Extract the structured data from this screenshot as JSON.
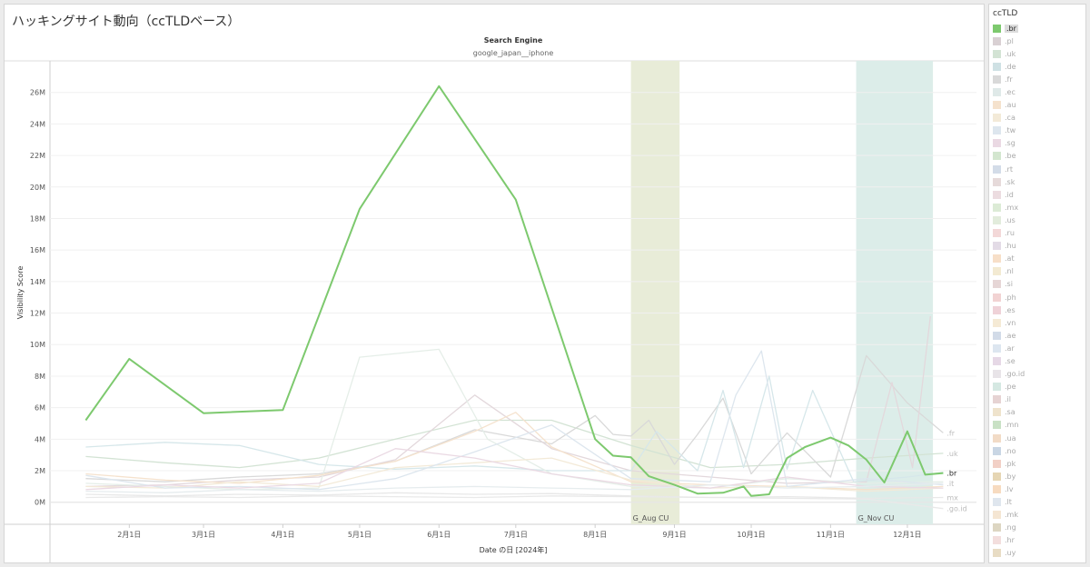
{
  "page": {
    "title": "ハッキングサイト動向（ccTLDベース）"
  },
  "chart_data": {
    "type": "line",
    "header_label": "Search Engine",
    "header_value": "google_japan__iphone",
    "xlabel": "Date の日 [2024年]",
    "ylabel": "Visibility Score",
    "xlim": [
      "2024-01-01",
      "2024-12-28"
    ],
    "ylim": [
      -1400000,
      28000000
    ],
    "x_ticks": [
      {
        "date": "2024-02-01",
        "label": "2月1日"
      },
      {
        "date": "2024-03-01",
        "label": "3月1日"
      },
      {
        "date": "2024-04-01",
        "label": "4月1日"
      },
      {
        "date": "2024-05-01",
        "label": "5月1日"
      },
      {
        "date": "2024-06-01",
        "label": "6月1日"
      },
      {
        "date": "2024-07-01",
        "label": "7月1日"
      },
      {
        "date": "2024-08-01",
        "label": "8月1日"
      },
      {
        "date": "2024-09-01",
        "label": "9月1日"
      },
      {
        "date": "2024-10-01",
        "label": "10月1日"
      },
      {
        "date": "2024-11-01",
        "label": "11月1日"
      },
      {
        "date": "2024-12-01",
        "label": "12月1日"
      }
    ],
    "y_ticks": [
      {
        "value": 0,
        "label": "0M"
      },
      {
        "value": 2000000,
        "label": "2M"
      },
      {
        "value": 4000000,
        "label": "4M"
      },
      {
        "value": 6000000,
        "label": "6M"
      },
      {
        "value": 8000000,
        "label": "8M"
      },
      {
        "value": 10000000,
        "label": "10M"
      },
      {
        "value": 12000000,
        "label": "12M"
      },
      {
        "value": 14000000,
        "label": "14M"
      },
      {
        "value": 16000000,
        "label": "16M"
      },
      {
        "value": 18000000,
        "label": "18M"
      },
      {
        "value": 20000000,
        "label": "20M"
      },
      {
        "value": 22000000,
        "label": "22M"
      },
      {
        "value": 24000000,
        "label": "24M"
      },
      {
        "value": 26000000,
        "label": "26M"
      }
    ],
    "grid": true,
    "bands": [
      {
        "label": "G_Aug CU",
        "start": "2024-08-15",
        "end": "2024-09-03",
        "color": "#e8ecd8"
      },
      {
        "label": "G_Nov CU",
        "start": "2024-11-11",
        "end": "2024-12-11",
        "color": "#dcede9"
      }
    ],
    "series": [
      {
        "name": ".br",
        "color": "#7dc96e",
        "highlight": true,
        "end_label": ".br",
        "x": [
          "2024-01-15",
          "2024-02-01",
          "2024-03-01",
          "2024-04-01",
          "2024-05-01",
          "2024-06-01",
          "2024-07-01",
          "2024-08-01",
          "2024-08-08",
          "2024-08-15",
          "2024-08-22",
          "2024-09-01",
          "2024-09-10",
          "2024-09-20",
          "2024-09-28",
          "2024-10-01",
          "2024-10-08",
          "2024-10-15",
          "2024-10-22",
          "2024-11-01",
          "2024-11-08",
          "2024-11-15",
          "2024-11-22",
          "2024-12-01",
          "2024-12-08",
          "2024-12-15"
        ],
        "y": [
          5200000,
          9100000,
          5650000,
          5850000,
          18600000,
          26400000,
          19200000,
          4000000,
          2950000,
          2850000,
          1650000,
          1100000,
          550000,
          600000,
          1000000,
          400000,
          500000,
          2800000,
          3500000,
          4100000,
          3600000,
          2700000,
          1250000,
          4500000,
          1750000,
          1850000
        ]
      },
      {
        "name": ".uk",
        "color": "#d3e3d4",
        "end_label": ".uk",
        "x": [
          "2024-01-15",
          "2024-02-15",
          "2024-03-15",
          "2024-04-15",
          "2024-05-15",
          "2024-06-15",
          "2024-07-15",
          "2024-08-15",
          "2024-09-15",
          "2024-10-15",
          "2024-11-15",
          "2024-12-15"
        ],
        "y": [
          2900000,
          2500000,
          2200000,
          2800000,
          4000000,
          5200000,
          5200000,
          3600000,
          2200000,
          2400000,
          2800000,
          3100000
        ]
      },
      {
        "name": ".fr",
        "color": "#d9d9d9",
        "end_label": ".fr",
        "x": [
          "2024-01-15",
          "2024-02-15",
          "2024-03-15",
          "2024-04-15",
          "2024-05-15",
          "2024-06-15",
          "2024-07-15",
          "2024-08-01",
          "2024-08-08",
          "2024-08-15",
          "2024-08-22",
          "2024-09-01",
          "2024-09-10",
          "2024-09-20",
          "2024-10-01",
          "2024-10-15",
          "2024-11-01",
          "2024-11-15",
          "2024-12-01",
          "2024-12-15"
        ],
        "y": [
          1500000,
          1300000,
          1600000,
          1800000,
          2600000,
          4600000,
          3700000,
          5500000,
          4300000,
          4200000,
          5200000,
          2400000,
          4300000,
          6600000,
          1800000,
          4400000,
          1600000,
          9300000,
          6300000,
          4400000
        ]
      },
      {
        "name": ".pl",
        "color": "#e3d8dc",
        "x": [
          "2024-01-15",
          "2024-02-15",
          "2024-03-15",
          "2024-04-15",
          "2024-05-15",
          "2024-06-15",
          "2024-07-15",
          "2024-08-15",
          "2024-09-15",
          "2024-10-15",
          "2024-11-15",
          "2024-11-25",
          "2024-12-03",
          "2024-12-10"
        ],
        "y": [
          1000000,
          1100000,
          1400000,
          1600000,
          2700000,
          6800000,
          3400000,
          2000000,
          1600000,
          1200000,
          1300000,
          7600000,
          2200000,
          11800000
        ]
      },
      {
        "name": ".de",
        "color": "#d6e7ea",
        "x": [
          "2024-01-15",
          "2024-02-15",
          "2024-03-15",
          "2024-04-15",
          "2024-05-15",
          "2024-06-15",
          "2024-07-15",
          "2024-08-15",
          "2024-08-25",
          "2024-09-10",
          "2024-09-20",
          "2024-09-28",
          "2024-10-08",
          "2024-10-15",
          "2024-10-25",
          "2024-11-10",
          "2024-12-01",
          "2024-12-15"
        ],
        "y": [
          3500000,
          3800000,
          3600000,
          2400000,
          2100000,
          2300000,
          2000000,
          2000000,
          4500000,
          2000000,
          7100000,
          2200000,
          8000000,
          2100000,
          7100000,
          1300000,
          1600000,
          1900000
        ]
      },
      {
        "name": ".ec",
        "color": "#e5eee8",
        "x": [
          "2024-01-15",
          "2024-02-15",
          "2024-03-15",
          "2024-04-15",
          "2024-05-01",
          "2024-06-01",
          "2024-06-20",
          "2024-07-15",
          "2024-08-15",
          "2024-09-15",
          "2024-10-15",
          "2024-11-15",
          "2024-12-15"
        ],
        "y": [
          1200000,
          1000000,
          800000,
          900000,
          9200000,
          9700000,
          4000000,
          1800000,
          1000000,
          900000,
          1500000,
          1200000,
          1300000
        ]
      },
      {
        "name": ".au",
        "color": "#f5e2cd",
        "x": [
          "2024-01-15",
          "2024-02-15",
          "2024-03-15",
          "2024-04-15",
          "2024-05-15",
          "2024-06-15",
          "2024-07-01",
          "2024-07-15",
          "2024-08-15",
          "2024-09-15",
          "2024-10-15",
          "2024-11-15",
          "2024-12-15"
        ],
        "y": [
          1800000,
          1400000,
          1200000,
          1700000,
          2600000,
          4500000,
          5700000,
          3500000,
          1300000,
          1100000,
          1000000,
          800000,
          1000000
        ]
      },
      {
        "name": ".ca",
        "color": "#f3ead8",
        "x": [
          "2024-01-15",
          "2024-02-15",
          "2024-03-15",
          "2024-04-15",
          "2024-05-15",
          "2024-06-15",
          "2024-07-15",
          "2024-08-15",
          "2024-09-15",
          "2024-10-15",
          "2024-11-15",
          "2024-12-15"
        ],
        "y": [
          1000000,
          900000,
          1300000,
          1000000,
          2200000,
          2500000,
          2800000,
          1400000,
          900000,
          1000000,
          700000,
          900000
        ]
      },
      {
        "name": ".tw",
        "color": "#dde6ee",
        "x": [
          "2024-01-15",
          "2024-02-15",
          "2024-03-15",
          "2024-04-15",
          "2024-05-15",
          "2024-06-15",
          "2024-07-15",
          "2024-08-15",
          "2024-09-15",
          "2024-09-25",
          "2024-10-05",
          "2024-10-15",
          "2024-11-15",
          "2024-12-15"
        ],
        "y": [
          1700000,
          900000,
          1000000,
          800000,
          1500000,
          3200000,
          4900000,
          1500000,
          1300000,
          6800000,
          9600000,
          1000000,
          1500000,
          1100000
        ]
      },
      {
        "name": ".sg",
        "color": "#ead9e3",
        "x": [
          "2024-01-15",
          "2024-02-15",
          "2024-03-15",
          "2024-04-15",
          "2024-05-15",
          "2024-06-15",
          "2024-07-15",
          "2024-08-15",
          "2024-09-15",
          "2024-10-15",
          "2024-11-15",
          "2024-12-15"
        ],
        "y": [
          800000,
          1100000,
          900000,
          1200000,
          3400000,
          2800000,
          1800000,
          1100000,
          900000,
          1600000,
          1000000,
          900000
        ]
      },
      {
        "name": ".mx",
        "color": "#e8e8e8",
        "end_label": "mx",
        "x": [
          "2024-01-15",
          "2024-02-15",
          "2024-03-15",
          "2024-04-15",
          "2024-05-15",
          "2024-06-15",
          "2024-07-15",
          "2024-08-15",
          "2024-09-15",
          "2024-10-15",
          "2024-11-15",
          "2024-12-15"
        ],
        "y": [
          500000,
          400000,
          500000,
          450000,
          600000,
          500000,
          550000,
          400000,
          300000,
          350000,
          250000,
          300000
        ]
      },
      {
        "name": ".it",
        "color": "#e6ecee",
        "end_label": ".it",
        "x": [
          "2024-01-15",
          "2024-02-15",
          "2024-03-15",
          "2024-04-15",
          "2024-05-15",
          "2024-06-15",
          "2024-07-15",
          "2024-08-15",
          "2024-09-15",
          "2024-10-15",
          "2024-11-15",
          "2024-12-15"
        ],
        "y": [
          700000,
          600000,
          800000,
          700000,
          900000,
          1000000,
          900000,
          800000,
          1100000,
          900000,
          1000000,
          1200000
        ]
      },
      {
        "name": ".go.id",
        "color": "#e9e9e9",
        "end_label": ".go.id",
        "x": [
          "2024-01-15",
          "2024-02-15",
          "2024-03-15",
          "2024-04-15",
          "2024-05-15",
          "2024-06-15",
          "2024-07-15",
          "2024-08-15",
          "2024-09-15",
          "2024-10-15",
          "2024-11-15",
          "2024-12-15"
        ],
        "y": [
          300000,
          350000,
          300000,
          400000,
          350000,
          300000,
          400000,
          350000,
          300000,
          250000,
          200000,
          -400000
        ]
      }
    ]
  },
  "legend": {
    "title": "ccTLD",
    "items": [
      {
        "label": ".br",
        "color": "#7dc96e",
        "active": true
      },
      {
        "label": ".pl",
        "color": "#d9d0d3"
      },
      {
        "label": ".uk",
        "color": "#d3e3d4"
      },
      {
        "label": ".de",
        "color": "#cfe1e4"
      },
      {
        "label": ".fr",
        "color": "#d9d9d9"
      },
      {
        "label": ".ec",
        "color": "#dfe9e8"
      },
      {
        "label": ".au",
        "color": "#f5e2cd"
      },
      {
        "label": ".ca",
        "color": "#f3ead8"
      },
      {
        "label": ".tw",
        "color": "#dde6ee"
      },
      {
        "label": ".sg",
        "color": "#ead9e3"
      },
      {
        "label": ".be",
        "color": "#d3e6cf"
      },
      {
        "label": ".rt",
        "color": "#d3dce8"
      },
      {
        "label": ".sk",
        "color": "#e6dada"
      },
      {
        "label": ".id",
        "color": "#ecdce0"
      },
      {
        "label": ".mx",
        "color": "#dcebd6"
      },
      {
        "label": ".us",
        "color": "#e2ecdc"
      },
      {
        "label": ".ru",
        "color": "#f3d8d8"
      },
      {
        "label": ".hu",
        "color": "#e3dbe6"
      },
      {
        "label": ".at",
        "color": "#f7dfc8"
      },
      {
        "label": ".nl",
        "color": "#f3ead2"
      },
      {
        "label": ".si",
        "color": "#e6d6d6"
      },
      {
        "label": ".ph",
        "color": "#f2d3d3"
      },
      {
        "label": ".es",
        "color": "#efd2d8"
      },
      {
        "label": ".vn",
        "color": "#f5ead5"
      },
      {
        "label": ".ae",
        "color": "#d2dbe8"
      },
      {
        "label": ".ar",
        "color": "#dde6f0"
      },
      {
        "label": ".se",
        "color": "#e6d8e6"
      },
      {
        "label": ".go.id",
        "color": "#e8e4e8"
      },
      {
        "label": ".pe",
        "color": "#d5e8e2"
      },
      {
        "label": ".il",
        "color": "#e6d3d3"
      },
      {
        "label": ".sa",
        "color": "#efe3cc"
      },
      {
        "label": ".mn",
        "color": "#c9e1c5"
      },
      {
        "label": ".ua",
        "color": "#f2dbc6"
      },
      {
        "label": ".no",
        "color": "#c9d6e4"
      },
      {
        "label": ".pk",
        "color": "#f2d0c6"
      },
      {
        "label": ".by",
        "color": "#e6d6b4"
      },
      {
        "label": ".lv",
        "color": "#f7dbc0"
      },
      {
        "label": ".lt",
        "color": "#dfe6ee"
      },
      {
        "label": ".mk",
        "color": "#f5e6d3"
      },
      {
        "label": ".ng",
        "color": "#ddd6c2"
      },
      {
        "label": ".hr",
        "color": "#f3dedd"
      },
      {
        "label": ".uy",
        "color": "#e8dcc4"
      }
    ]
  }
}
